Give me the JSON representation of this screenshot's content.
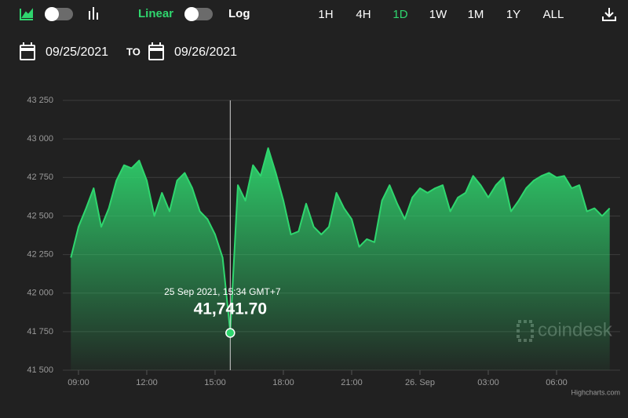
{
  "toolbar": {
    "scale_options": [
      "Linear",
      "Log"
    ],
    "ranges": [
      "1H",
      "4H",
      "1D",
      "1W",
      "1M",
      "1Y",
      "ALL"
    ]
  },
  "date_range": {
    "from": "09/25/2021",
    "to_label": "TO",
    "to": "09/26/2021"
  },
  "chart_data": {
    "type": "area",
    "categories": [
      null,
      "09:00",
      null,
      null,
      null,
      null,
      null,
      null,
      null,
      null,
      "12:00",
      null,
      null,
      null,
      null,
      null,
      null,
      null,
      null,
      "15:00",
      null,
      null,
      null,
      null,
      null,
      null,
      null,
      null,
      "18:00",
      null,
      null,
      null,
      null,
      null,
      null,
      null,
      null,
      "21:00",
      null,
      null,
      null,
      null,
      null,
      null,
      null,
      null,
      "26. Sep",
      null,
      null,
      null,
      null,
      null,
      null,
      null,
      null,
      "03:00",
      null,
      null,
      null,
      null,
      null,
      null,
      null,
      null,
      "06:00",
      null,
      null,
      null,
      null,
      null,
      null,
      null
    ],
    "values": [
      42230,
      42430,
      42550,
      42680,
      42430,
      42550,
      42730,
      42830,
      42810,
      42860,
      42730,
      42500,
      42650,
      42530,
      42730,
      42780,
      42680,
      42530,
      42480,
      42380,
      42230,
      41750,
      42700,
      42600,
      42830,
      42760,
      42940,
      42780,
      42600,
      42380,
      42400,
      42580,
      42430,
      42380,
      42430,
      42650,
      42550,
      42480,
      42300,
      42350,
      42330,
      42600,
      42700,
      42580,
      42480,
      42620,
      42680,
      42650,
      42680,
      42700,
      42530,
      42620,
      42650,
      42760,
      42700,
      42620,
      42700,
      42750,
      42530,
      42600,
      42680,
      42730,
      42760,
      42780,
      42750,
      42760,
      42680,
      42700,
      42530,
      42550,
      42500,
      42550
    ],
    "color": "#2fd66e",
    "ylim": [
      41500,
      43250
    ],
    "yticks": [
      {
        "value": 41500,
        "label": "41 500"
      },
      {
        "value": 41750,
        "label": "41 750"
      },
      {
        "value": 42000,
        "label": "42 000"
      },
      {
        "value": 42250,
        "label": "42 250"
      },
      {
        "value": 42500,
        "label": "42 500"
      },
      {
        "value": 42750,
        "label": "42 750"
      },
      {
        "value": 43000,
        "label": "43 000"
      },
      {
        "value": 43250,
        "label": "43 250"
      }
    ],
    "grid": true,
    "tooltip": {
      "index": 21,
      "label": "25 Sep 2021, 15:34 GMT+7",
      "value": 41741.7,
      "value_label": "41,741.70"
    },
    "watermark": "coindesk",
    "credits": "Highcharts.com"
  }
}
